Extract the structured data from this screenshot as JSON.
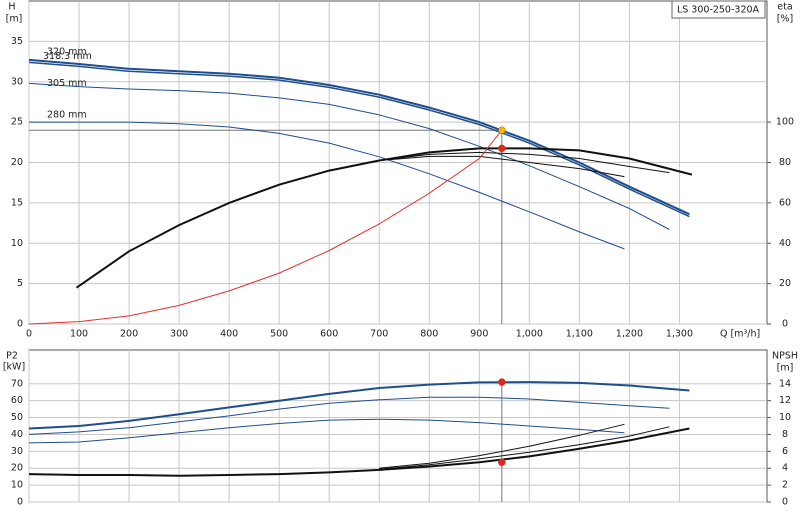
{
  "chart_data": [
    {
      "type": "line",
      "title": "LS 300-250-320A",
      "ylabel": "H",
      "yunit": "[m]",
      "y2label": "eta",
      "y2unit": "[%]",
      "xlabel": "Q [m³/h]",
      "xlim": [
        0,
        1475
      ],
      "ylim": [
        0,
        40
      ],
      "y2lim": [
        0,
        160
      ],
      "grid": true,
      "xticks": [
        0,
        100,
        200,
        300,
        400,
        500,
        600,
        700,
        800,
        900,
        {
          "value": 1000,
          "label": "1,000"
        },
        {
          "value": 1100,
          "label": "1,100"
        },
        {
          "value": 1200,
          "label": "1,200"
        },
        {
          "value": 1300,
          "label": "1,300"
        }
      ],
      "yticks": [
        0,
        5,
        10,
        15,
        20,
        25,
        30,
        35
      ],
      "y2ticks": [
        0,
        20,
        40,
        60,
        80,
        100
      ],
      "series": [
        {
          "name": "320 mm",
          "color": "#1f4e8f",
          "width": 2,
          "x": [
            0,
            100,
            200,
            300,
            400,
            500,
            600,
            700,
            800,
            900,
            1000,
            1100,
            1200,
            1320
          ],
          "values": [
            32.7,
            32.2,
            31.6,
            31.3,
            31.0,
            30.5,
            29.6,
            28.4,
            26.8,
            25.0,
            22.7,
            20.0,
            17.0,
            13.6
          ]
        },
        {
          "name": "318.3 mm",
          "color": "#1f4e8f",
          "width": 1.5,
          "x": [
            0,
            100,
            200,
            300,
            400,
            500,
            600,
            700,
            800,
            900,
            1000,
            1100,
            1200,
            1320
          ],
          "values": [
            32.4,
            31.9,
            31.3,
            31.0,
            30.7,
            30.2,
            29.3,
            28.1,
            26.5,
            24.7,
            22.4,
            19.7,
            16.7,
            13.3
          ]
        },
        {
          "name": "305 mm",
          "color": "#1f4e8f",
          "width": 1,
          "x": [
            0,
            100,
            200,
            300,
            400,
            500,
            600,
            700,
            800,
            900,
            1000,
            1100,
            1200,
            1280
          ],
          "values": [
            29.8,
            29.4,
            29.1,
            28.9,
            28.6,
            28.0,
            27.2,
            25.9,
            24.2,
            22.0,
            19.6,
            17.0,
            14.3,
            11.7
          ]
        },
        {
          "name": "280 mm",
          "color": "#1f4e8f",
          "width": 1,
          "x": [
            0,
            100,
            200,
            300,
            400,
            500,
            600,
            700,
            800,
            900,
            1000,
            1100,
            1190
          ],
          "values": [
            25.0,
            25.0,
            25.0,
            24.8,
            24.4,
            23.6,
            22.4,
            20.7,
            18.6,
            16.3,
            13.9,
            11.4,
            9.3
          ]
        },
        {
          "axis": "y2",
          "color": "#111111",
          "width": 2,
          "x": [
            95,
            200,
            300,
            400,
            500,
            600,
            700,
            800,
            900,
            1000,
            1100,
            1200,
            1325
          ],
          "values": [
            18,
            36,
            49,
            60,
            69,
            76,
            81,
            85,
            87,
            87,
            86,
            82,
            74
          ]
        },
        {
          "axis": "y2",
          "color": "#111111",
          "width": 1,
          "x": [
            700,
            800,
            900,
            1000,
            1100,
            1200,
            1280
          ],
          "values": [
            81,
            84,
            85,
            84,
            82,
            78,
            75
          ]
        },
        {
          "axis": "y2",
          "color": "#111111",
          "width": 1,
          "x": [
            700,
            800,
            900,
            1000,
            1100,
            1190
          ],
          "values": [
            81,
            83,
            83,
            80,
            77,
            73
          ]
        },
        {
          "color": "#e83030",
          "width": 1,
          "x": [
            0,
            100,
            200,
            300,
            400,
            500,
            600,
            700,
            800,
            900,
            945
          ],
          "values": [
            0,
            0.3,
            1.0,
            2.3,
            4.1,
            6.3,
            9.1,
            12.4,
            16.2,
            20.5,
            24.0
          ]
        }
      ],
      "points": [
        {
          "x": 945,
          "y": 24,
          "color": "#f5b800"
        },
        {
          "x": 945,
          "y": 87,
          "axis": "y2",
          "color": "#e82020"
        }
      ]
    },
    {
      "type": "line",
      "ylabel": "P2",
      "yunit": "[kW]",
      "y2label": "NPSH",
      "y2unit": "[m]",
      "xlim": [
        0,
        1475
      ],
      "ylim": [
        0,
        90
      ],
      "y2lim": [
        0,
        18
      ],
      "grid": true,
      "yticks": [
        0,
        10,
        20,
        30,
        40,
        50,
        60,
        70
      ],
      "y2ticks": [
        0,
        2,
        4,
        6,
        8,
        10,
        12,
        14
      ],
      "series": [
        {
          "color": "#1f4e8f",
          "width": 2,
          "x": [
            0,
            100,
            200,
            300,
            400,
            500,
            600,
            700,
            800,
            900,
            1000,
            1100,
            1200,
            1320
          ],
          "values": [
            43.5,
            45,
            48,
            52,
            56,
            60,
            64,
            67.5,
            69.5,
            70.8,
            71,
            70.5,
            69,
            66
          ]
        },
        {
          "color": "#1f4e8f",
          "width": 1,
          "x": [
            0,
            100,
            200,
            300,
            400,
            500,
            600,
            700,
            800,
            900,
            1000,
            1100,
            1200,
            1280
          ],
          "values": [
            40,
            41.5,
            44,
            47.5,
            51,
            55,
            58.5,
            60.5,
            62,
            62,
            61,
            59,
            57,
            55.5
          ]
        },
        {
          "color": "#1f4e8f",
          "width": 1,
          "x": [
            0,
            100,
            200,
            300,
            400,
            500,
            600,
            700,
            800,
            900,
            1000,
            1100,
            1190
          ],
          "values": [
            35,
            35.5,
            38,
            41,
            44,
            46.5,
            48.5,
            49,
            48.5,
            47,
            45,
            43,
            41
          ]
        },
        {
          "axis": "y2",
          "color": "#111111",
          "width": 2,
          "x": [
            0,
            100,
            200,
            300,
            400,
            500,
            600,
            700,
            800,
            900,
            1000,
            1100,
            1200,
            1320
          ],
          "values": [
            3.3,
            3.2,
            3.2,
            3.1,
            3.2,
            3.3,
            3.5,
            3.8,
            4.2,
            4.7,
            5.4,
            6.3,
            7.3,
            8.7
          ]
        },
        {
          "axis": "y2",
          "color": "#111111",
          "width": 1,
          "x": [
            700,
            800,
            900,
            1000,
            1100,
            1200,
            1280
          ],
          "values": [
            3.9,
            4.4,
            5.1,
            5.9,
            6.8,
            7.8,
            8.9
          ]
        },
        {
          "axis": "y2",
          "color": "#111111",
          "width": 1,
          "x": [
            700,
            800,
            900,
            1000,
            1100,
            1190
          ],
          "values": [
            4.0,
            4.6,
            5.5,
            6.6,
            7.9,
            9.2
          ]
        }
      ],
      "points": [
        {
          "x": 945,
          "y": 71,
          "color": "#e82020"
        },
        {
          "x": 945,
          "y": 4.7,
          "axis": "y2",
          "color": "#e82020"
        }
      ]
    }
  ]
}
